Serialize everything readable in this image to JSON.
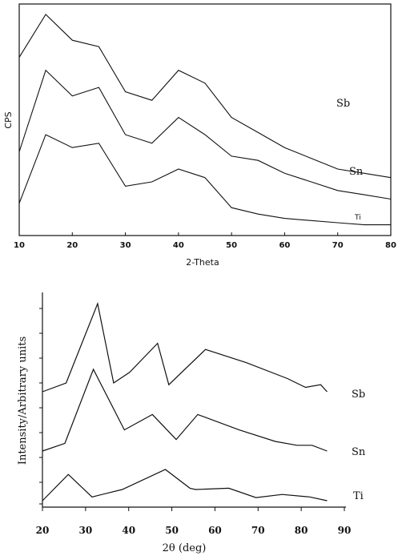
{
  "chart_data": [
    {
      "type": "line",
      "xlabel": "2-Theta",
      "ylabel": "CPS",
      "xlim": [
        10,
        80
      ],
      "xticks": [
        10,
        20,
        30,
        40,
        50,
        60,
        70,
        80
      ],
      "grid": false,
      "series": [
        {
          "name": "Sb",
          "x": [
            10,
            15,
            20,
            25,
            30,
            35,
            40,
            45,
            50,
            55,
            60,
            65,
            70,
            75,
            80
          ],
          "values": [
            0.8,
            1.0,
            0.88,
            0.85,
            0.64,
            0.6,
            0.74,
            0.68,
            0.52,
            0.45,
            0.38,
            0.33,
            0.28,
            0.26,
            0.24
          ]
        },
        {
          "name": "Sn",
          "x": [
            10,
            15,
            20,
            25,
            30,
            35,
            40,
            45,
            50,
            55,
            60,
            65,
            70,
            75,
            80
          ],
          "values": [
            0.36,
            0.74,
            0.62,
            0.66,
            0.44,
            0.4,
            0.52,
            0.44,
            0.34,
            0.32,
            0.26,
            0.22,
            0.18,
            0.16,
            0.14
          ]
        },
        {
          "name": "Ti",
          "x": [
            10,
            15,
            20,
            25,
            30,
            35,
            40,
            45,
            50,
            55,
            60,
            65,
            70,
            75,
            80
          ],
          "values": [
            0.12,
            0.44,
            0.38,
            0.4,
            0.2,
            0.22,
            0.28,
            0.24,
            0.1,
            0.07,
            0.05,
            0.04,
            0.03,
            0.02,
            0.02
          ]
        }
      ]
    },
    {
      "type": "line",
      "xlabel": "2θ (deg)",
      "ylabel": "Intensity/Arbitrary units",
      "xlim": [
        20,
        90
      ],
      "xticks": [
        20,
        30,
        40,
        50,
        60,
        70,
        80,
        90
      ],
      "grid": false,
      "series": [
        {
          "name": "Sb",
          "x": [
            20,
            25.5,
            32.8,
            36.5,
            40.2,
            46.7,
            49.3,
            57.8,
            67.3,
            76.8,
            81.0,
            84.5,
            86
          ],
          "values": [
            0.0,
            0.1,
            1.0,
            0.1,
            0.22,
            0.55,
            0.08,
            0.48,
            0.33,
            0.15,
            0.05,
            0.08,
            0.0
          ]
        },
        {
          "name": "Sn",
          "x": [
            20,
            25.2,
            31.8,
            39.0,
            45.5,
            51.0,
            56.0,
            65.6,
            74.0,
            79.0,
            82.5,
            86
          ],
          "values": [
            0.0,
            0.08,
            0.85,
            0.22,
            0.38,
            0.12,
            0.38,
            0.22,
            0.1,
            0.06,
            0.06,
            0.0
          ]
        },
        {
          "name": "Ti",
          "x": [
            20,
            26.0,
            31.5,
            38.5,
            48.5,
            54.2,
            55.5,
            63.2,
            69.5,
            75.6,
            82.0,
            86
          ],
          "values": [
            0.0,
            0.42,
            0.06,
            0.18,
            0.5,
            0.2,
            0.18,
            0.2,
            0.05,
            0.1,
            0.06,
            0.0
          ]
        }
      ]
    }
  ]
}
